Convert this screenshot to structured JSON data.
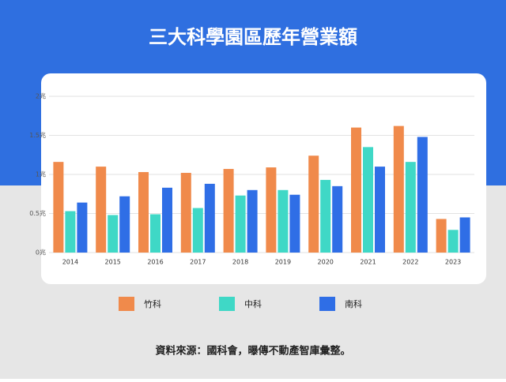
{
  "chart_data": {
    "type": "bar",
    "title": "三大科學園區歷年營業額",
    "categories": [
      "2014",
      "2015",
      "2016",
      "2017",
      "2018",
      "2019",
      "2020",
      "2021",
      "2022",
      "2023"
    ],
    "series": [
      {
        "name": "竹科",
        "color": "#f08a4b",
        "values": [
          1.16,
          1.1,
          1.03,
          1.02,
          1.07,
          1.09,
          1.24,
          1.6,
          1.62,
          0.43
        ]
      },
      {
        "name": "中科",
        "color": "#3fd8c6",
        "values": [
          0.53,
          0.48,
          0.49,
          0.57,
          0.73,
          0.8,
          0.93,
          1.35,
          1.16,
          0.29
        ]
      },
      {
        "name": "南科",
        "color": "#2f6ee6",
        "values": [
          0.64,
          0.72,
          0.83,
          0.88,
          0.8,
          0.74,
          0.85,
          1.1,
          1.48,
          0.45
        ]
      }
    ],
    "ylim": [
      0,
      2
    ],
    "yticks": [
      {
        "value": 0,
        "label": "0兆"
      },
      {
        "value": 0.5,
        "label": "0.5兆"
      },
      {
        "value": 1,
        "label": "1兆"
      },
      {
        "value": 1.5,
        "label": "1.5兆"
      },
      {
        "value": 2,
        "label": "2兆"
      }
    ],
    "grid": true,
    "source": "資料來源：國科會，曝傳不動產智庫彙整。"
  }
}
